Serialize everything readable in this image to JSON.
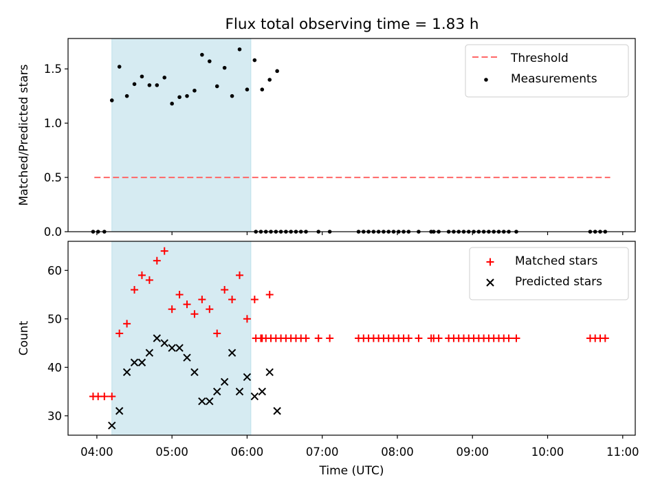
{
  "title": "Flux total observing time = 1.83 h",
  "chart_data": [
    {
      "type": "scatter",
      "ylabel": "Matched/Predicted stars",
      "xlabel": "",
      "xlim": [
        "03:37",
        "11:10"
      ],
      "ylim": [
        0,
        1.78
      ],
      "yticks": [
        "0.0",
        "0.5",
        "1.0",
        "1.5"
      ],
      "highlight_span": [
        "04:12",
        "06:03"
      ],
      "highlight_color": "#add8e6",
      "legend_position": "top-right",
      "threshold": {
        "name": "Threshold",
        "y": 0.5,
        "x_range": [
          "03:58",
          "10:50"
        ],
        "color": "#ff6666"
      },
      "series": [
        {
          "name": "Measurements",
          "color": "#000000",
          "marker": "dot",
          "points": [
            [
              "03:57",
              0
            ],
            [
              "04:01",
              0
            ],
            [
              "04:06",
              0
            ],
            [
              "04:12",
              1.21
            ],
            [
              "04:18",
              1.52
            ],
            [
              "04:24",
              1.25
            ],
            [
              "04:30",
              1.36
            ],
            [
              "04:36",
              1.43
            ],
            [
              "04:42",
              1.35
            ],
            [
              "04:48",
              1.35
            ],
            [
              "04:54",
              1.42
            ],
            [
              "05:00",
              1.18
            ],
            [
              "05:06",
              1.24
            ],
            [
              "05:12",
              1.25
            ],
            [
              "05:18",
              1.3
            ],
            [
              "05:24",
              1.63
            ],
            [
              "05:30",
              1.57
            ],
            [
              "05:36",
              1.34
            ],
            [
              "05:42",
              1.51
            ],
            [
              "05:48",
              1.25
            ],
            [
              "05:54",
              1.68
            ],
            [
              "06:00",
              1.31
            ],
            [
              "06:06",
              1.58
            ],
            [
              "06:12",
              1.31
            ],
            [
              "06:18",
              1.4
            ],
            [
              "06:24",
              1.48
            ],
            [
              "06:07",
              0
            ],
            [
              "06:11",
              0
            ],
            [
              "06:15",
              0
            ],
            [
              "06:19",
              0
            ],
            [
              "06:23",
              0
            ],
            [
              "06:27",
              0
            ],
            [
              "06:31",
              0
            ],
            [
              "06:35",
              0
            ],
            [
              "06:39",
              0
            ],
            [
              "06:43",
              0
            ],
            [
              "06:47",
              0
            ],
            [
              "06:57",
              0
            ],
            [
              "07:06",
              0
            ],
            [
              "07:29",
              0
            ],
            [
              "07:33",
              0
            ],
            [
              "07:37",
              0
            ],
            [
              "07:41",
              0
            ],
            [
              "07:45",
              0
            ],
            [
              "07:49",
              0
            ],
            [
              "07:53",
              0
            ],
            [
              "07:57",
              0
            ],
            [
              "08:01",
              0
            ],
            [
              "08:05",
              0
            ],
            [
              "08:09",
              0
            ],
            [
              "08:17",
              0
            ],
            [
              "08:27",
              0
            ],
            [
              "08:29",
              0
            ],
            [
              "08:33",
              0
            ],
            [
              "08:41",
              0
            ],
            [
              "08:45",
              0
            ],
            [
              "08:49",
              0
            ],
            [
              "08:53",
              0
            ],
            [
              "08:57",
              0
            ],
            [
              "09:01",
              0
            ],
            [
              "09:05",
              0
            ],
            [
              "09:09",
              0
            ],
            [
              "09:13",
              0
            ],
            [
              "09:17",
              0
            ],
            [
              "09:21",
              0
            ],
            [
              "09:25",
              0
            ],
            [
              "09:29",
              0
            ],
            [
              "09:35",
              0
            ],
            [
              "10:34",
              0
            ],
            [
              "10:38",
              0
            ],
            [
              "10:42",
              0
            ],
            [
              "10:46",
              0
            ]
          ]
        }
      ]
    },
    {
      "type": "scatter",
      "ylabel": "Count",
      "xlabel": "Time (UTC)",
      "xlim": [
        "03:37",
        "11:10"
      ],
      "ylim": [
        26,
        66
      ],
      "yticks": [
        "30",
        "40",
        "50",
        "60"
      ],
      "xticks": [
        "04:00",
        "05:00",
        "06:00",
        "07:00",
        "08:00",
        "09:00",
        "10:00",
        "11:00"
      ],
      "highlight_span": [
        "04:12",
        "06:03"
      ],
      "highlight_color": "#add8e6",
      "legend_position": "top-right",
      "series": [
        {
          "name": "Matched stars",
          "color": "#ff0000",
          "marker": "plus",
          "points": [
            [
              "03:57",
              34
            ],
            [
              "04:01",
              34
            ],
            [
              "04:06",
              34
            ],
            [
              "04:12",
              34
            ],
            [
              "04:18",
              47
            ],
            [
              "04:24",
              49
            ],
            [
              "04:30",
              56
            ],
            [
              "04:36",
              59
            ],
            [
              "04:42",
              58
            ],
            [
              "04:48",
              62
            ],
            [
              "04:54",
              64
            ],
            [
              "05:00",
              52
            ],
            [
              "05:06",
              55
            ],
            [
              "05:12",
              53
            ],
            [
              "05:18",
              51
            ],
            [
              "05:24",
              54
            ],
            [
              "05:30",
              52
            ],
            [
              "05:36",
              47
            ],
            [
              "05:42",
              56
            ],
            [
              "05:48",
              54
            ],
            [
              "05:54",
              59
            ],
            [
              "06:00",
              50
            ],
            [
              "06:06",
              54
            ],
            [
              "06:12",
              46
            ],
            [
              "06:18",
              55
            ],
            [
              "06:07",
              46
            ],
            [
              "06:11",
              46
            ],
            [
              "06:15",
              46
            ],
            [
              "06:19",
              46
            ],
            [
              "06:23",
              46
            ],
            [
              "06:27",
              46
            ],
            [
              "06:31",
              46
            ],
            [
              "06:35",
              46
            ],
            [
              "06:39",
              46
            ],
            [
              "06:43",
              46
            ],
            [
              "06:47",
              46
            ],
            [
              "06:57",
              46
            ],
            [
              "07:06",
              46
            ],
            [
              "07:29",
              46
            ],
            [
              "07:33",
              46
            ],
            [
              "07:37",
              46
            ],
            [
              "07:41",
              46
            ],
            [
              "07:45",
              46
            ],
            [
              "07:49",
              46
            ],
            [
              "07:53",
              46
            ],
            [
              "07:57",
              46
            ],
            [
              "08:01",
              46
            ],
            [
              "08:05",
              46
            ],
            [
              "08:09",
              46
            ],
            [
              "08:17",
              46
            ],
            [
              "08:27",
              46
            ],
            [
              "08:29",
              46
            ],
            [
              "08:33",
              46
            ],
            [
              "08:41",
              46
            ],
            [
              "08:45",
              46
            ],
            [
              "08:49",
              46
            ],
            [
              "08:53",
              46
            ],
            [
              "08:57",
              46
            ],
            [
              "09:01",
              46
            ],
            [
              "09:05",
              46
            ],
            [
              "09:09",
              46
            ],
            [
              "09:13",
              46
            ],
            [
              "09:17",
              46
            ],
            [
              "09:21",
              46
            ],
            [
              "09:25",
              46
            ],
            [
              "09:29",
              46
            ],
            [
              "09:35",
              46
            ],
            [
              "10:34",
              46
            ],
            [
              "10:38",
              46
            ],
            [
              "10:42",
              46
            ],
            [
              "10:46",
              46
            ]
          ]
        },
        {
          "name": "Predicted stars",
          "color": "#000000",
          "marker": "x",
          "points": [
            [
              "04:12",
              28
            ],
            [
              "04:18",
              31
            ],
            [
              "04:24",
              39
            ],
            [
              "04:30",
              41
            ],
            [
              "04:36",
              41
            ],
            [
              "04:42",
              43
            ],
            [
              "04:48",
              46
            ],
            [
              "04:54",
              45
            ],
            [
              "05:00",
              44
            ],
            [
              "05:06",
              44
            ],
            [
              "05:12",
              42
            ],
            [
              "05:18",
              39
            ],
            [
              "05:24",
              33
            ],
            [
              "05:30",
              33
            ],
            [
              "05:36",
              35
            ],
            [
              "05:42",
              37
            ],
            [
              "05:48",
              43
            ],
            [
              "05:54",
              35
            ],
            [
              "06:00",
              38
            ],
            [
              "06:06",
              34
            ],
            [
              "06:12",
              35
            ],
            [
              "06:18",
              39
            ],
            [
              "06:24",
              31
            ]
          ]
        }
      ]
    }
  ]
}
